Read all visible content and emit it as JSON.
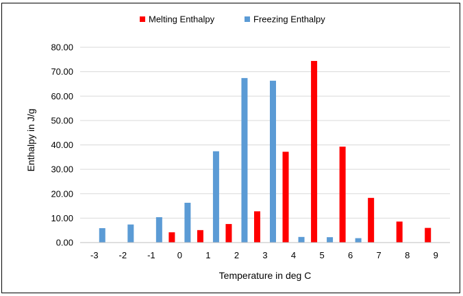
{
  "chart_data": {
    "type": "bar",
    "title": "",
    "xlabel": "Temperature in deg C",
    "ylabel": "Enthalpy in J/g",
    "ylim": [
      0,
      80
    ],
    "yticks": [
      "0.00",
      "10.00",
      "20.00",
      "30.00",
      "40.00",
      "50.00",
      "60.00",
      "70.00",
      "80.00"
    ],
    "grid": true,
    "legend_position": "top",
    "categories": [
      "-3",
      "-2",
      "-1",
      "0",
      "1",
      "2",
      "3",
      "4",
      "5",
      "6",
      "7",
      "8",
      "9"
    ],
    "series": [
      {
        "name": "Melting Enthalpy",
        "color": "#ff0000",
        "values": [
          null,
          null,
          null,
          4.2,
          5.1,
          7.6,
          12.8,
          37.2,
          74.4,
          39.3,
          18.3,
          8.6,
          6.0
        ]
      },
      {
        "name": "Freezing Enthalpy",
        "color": "#5b9bd5",
        "values": [
          5.9,
          7.4,
          10.4,
          16.3,
          37.4,
          67.4,
          66.3,
          2.3,
          2.2,
          1.8,
          null,
          null,
          null
        ]
      }
    ]
  }
}
